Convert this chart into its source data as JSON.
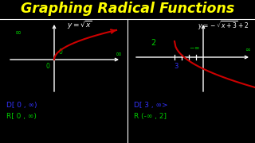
{
  "title": "Graphing Radical Functions",
  "title_color": "#FFFF00",
  "bg_color": "#000000",
  "label_color": "#FFFFFF",
  "inf_color": "#00CC00",
  "domain_color": "#3333FF",
  "range_color": "#00CC00",
  "curve_color": "#CC0000",
  "axis_color": "#FFFFFF",
  "divider_color": "#FFFFFF",
  "domain1": "D[ 0 , ∞)",
  "range1": "R[ 0 , ∞)",
  "domain2": "D[ 3 , ∞>",
  "range2": "R (-∞ , 2]"
}
